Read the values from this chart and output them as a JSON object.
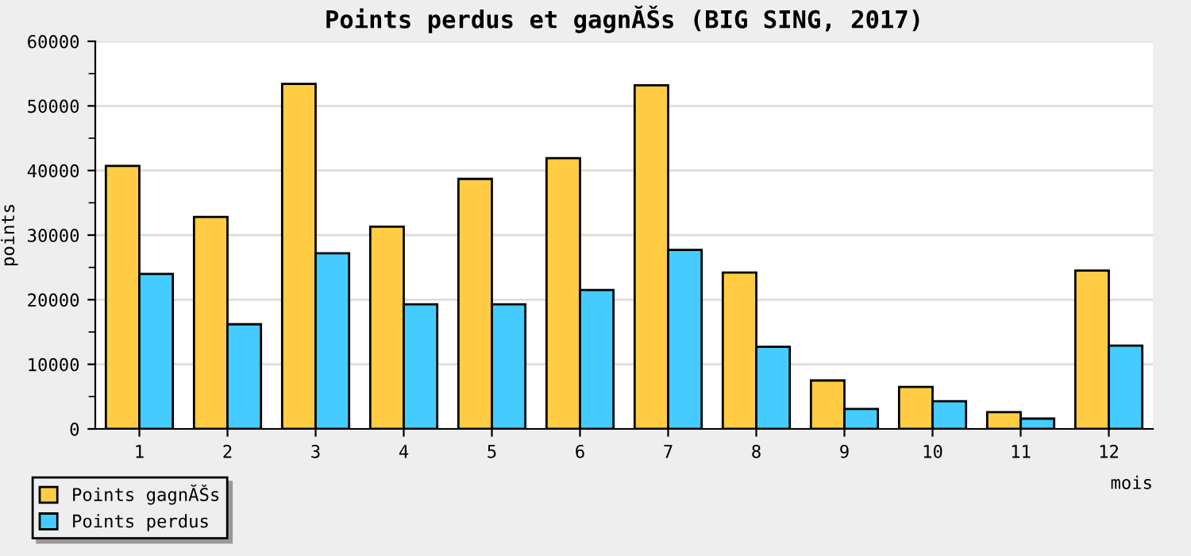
{
  "chart_data": {
    "type": "bar",
    "title": "Points perdus et gagnĂŠs (BIG SING, 2017)",
    "xlabel": "mois",
    "ylabel": "points",
    "categories": [
      "1",
      "2",
      "3",
      "4",
      "5",
      "6",
      "7",
      "8",
      "9",
      "10",
      "11",
      "12"
    ],
    "series": [
      {
        "name": "Points gagnĂŠs",
        "color": "#ffcc44",
        "values": [
          40700,
          32800,
          53400,
          31300,
          38700,
          41900,
          53200,
          24200,
          7500,
          6500,
          2600,
          24500
        ]
      },
      {
        "name": "Points perdus",
        "color": "#44ccff",
        "values": [
          24000,
          16200,
          27200,
          19300,
          19300,
          21500,
          27700,
          12700,
          3100,
          4300,
          1600,
          12900
        ]
      }
    ],
    "ylim": [
      0,
      60000
    ],
    "yticks": [
      0,
      10000,
      20000,
      30000,
      40000,
      50000,
      60000
    ],
    "grid": "y",
    "legend": "bottom left"
  }
}
